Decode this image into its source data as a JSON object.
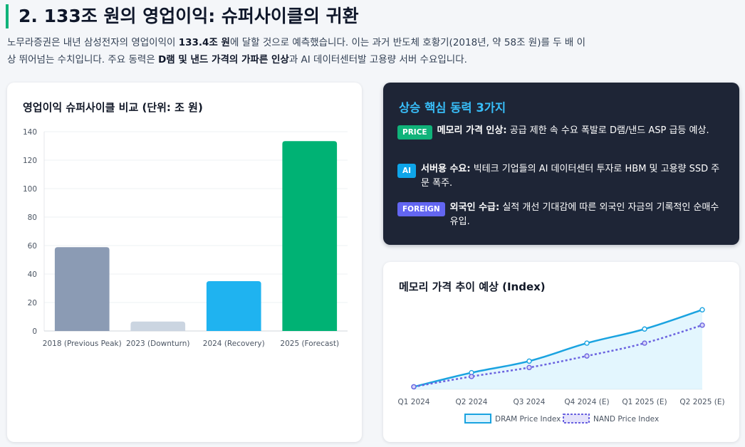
{
  "header": {
    "title": "2. 133조 원의 영업이익: 슈퍼사이클의 귀환"
  },
  "intro": {
    "line1_a": "노무라증권은 내년 삼성전자의 영업이익이 ",
    "line1_b": "133.4조 원",
    "line1_c": "에 달할 것으로 예측했습니다. 이는 과거 반도체 호황기(2018년, 약 58조 원)를 두 배 이상 뛰어넘는 수치입니다. 주요 동력은 ",
    "line1_d": "D램 및 낸드 가격의 가파른 인상",
    "line1_e": "과 AI 데이터센터발 고용량 서버 수요입니다."
  },
  "drivers": {
    "title": "상승 핵심 동력 3가지",
    "items": [
      {
        "badge": "PRICE",
        "badge_color": "#10b37a",
        "label": "메모리 가격 인상:",
        "text": " 공급 제한 속 수요 폭발로 D램/낸드 ASP 급등 예상."
      },
      {
        "badge": "AI",
        "badge_color": "#0ea5e9",
        "label": "서버용 수요:",
        "text": " 빅테크 기업들의 AI 데이터센터 투자로 HBM 및 고용량 SSD 주문 폭주."
      },
      {
        "badge": "FOREIGN",
        "badge_color": "#6366f1",
        "label": "외국인 수급:",
        "text": " 실적 개선 기대감에 따른 외국인 자금의 기록적인 순매수 유입."
      }
    ]
  },
  "chart_data": [
    {
      "type": "bar",
      "title": "영업이익 슈퍼사이클 비교 (단위: 조 원)",
      "categories": [
        "2018 (Previous Peak)",
        "2023 (Downturn)",
        "2024 (Recovery)",
        "2025 (Forecast)"
      ],
      "values": [
        58.9,
        6.6,
        35,
        133.4
      ],
      "colors": [
        "#8b9bb4",
        "#cbd5e1",
        "#1fb3f0",
        "#00b274"
      ],
      "ylim": [
        0,
        140
      ],
      "yticks": [
        0,
        20,
        40,
        60,
        80,
        100,
        120,
        140
      ],
      "grid": true
    },
    {
      "type": "line",
      "title": "메모리 가격 추이 예상 (Index)",
      "categories": [
        "Q1 2024",
        "Q2 2024",
        "Q3 2024",
        "Q4 2024 (E)",
        "Q1 2025 (E)",
        "Q2 2025 (E)"
      ],
      "series": [
        {
          "name": "DRAM Price Index",
          "values": [
            100,
            111,
            120,
            134,
            145,
            160
          ],
          "color": "#1aa3e0",
          "style": "solid",
          "fill": true
        },
        {
          "name": "NAND Price Index",
          "values": [
            100,
            108,
            115,
            124,
            134,
            148
          ],
          "color": "#6b63e0",
          "style": "dotted",
          "fill": false
        }
      ],
      "ylim": [
        98,
        164
      ],
      "legend": "bottom"
    }
  ]
}
